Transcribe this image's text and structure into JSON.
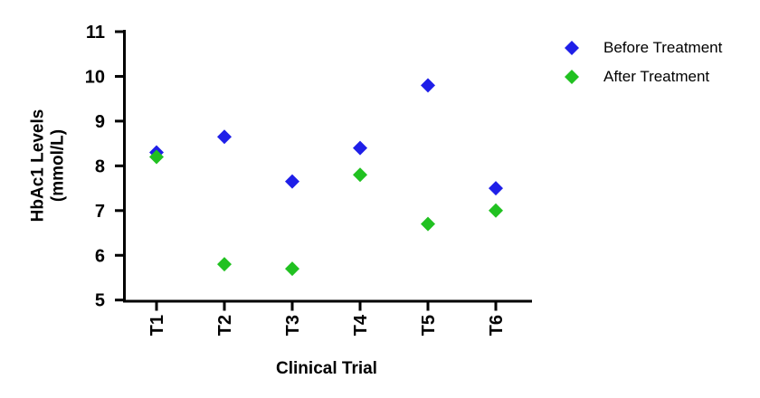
{
  "figure": {
    "background": "#ffffff",
    "text_color": "#000000"
  },
  "legend": {
    "position": "top-right",
    "items": [
      {
        "label": "Before Treatment",
        "color": "#1f1fe8",
        "marker": "diamond"
      },
      {
        "label": "After Treatment",
        "color": "#21c121",
        "marker": "diamond"
      }
    ]
  },
  "chart_data": {
    "type": "scatter",
    "title": "",
    "categories": [
      "T1",
      "T2",
      "T3",
      "T4",
      "T5",
      "T6"
    ],
    "series": [
      {
        "name": "Before Treatment",
        "color": "#1f1fe8",
        "marker": "diamond",
        "values": [
          8.3,
          8.65,
          7.65,
          8.4,
          9.8,
          7.5
        ]
      },
      {
        "name": "After Treatment",
        "color": "#21c121",
        "marker": "diamond",
        "values": [
          8.2,
          5.8,
          5.7,
          7.8,
          6.7,
          7.0
        ]
      }
    ],
    "xlabel": "Clinical Trial",
    "ylabel": "HbAc1 Levels (mmol/L)",
    "ylabel_lines": [
      "HbAc1 Levels",
      "(mmol/L)"
    ],
    "ylim": [
      5,
      11
    ],
    "yticks": [
      5,
      6,
      7,
      8,
      9,
      10,
      11
    ],
    "xtick_rotation": -90,
    "grid": false,
    "axis_color": "#000000",
    "legend_position": "top-right"
  }
}
